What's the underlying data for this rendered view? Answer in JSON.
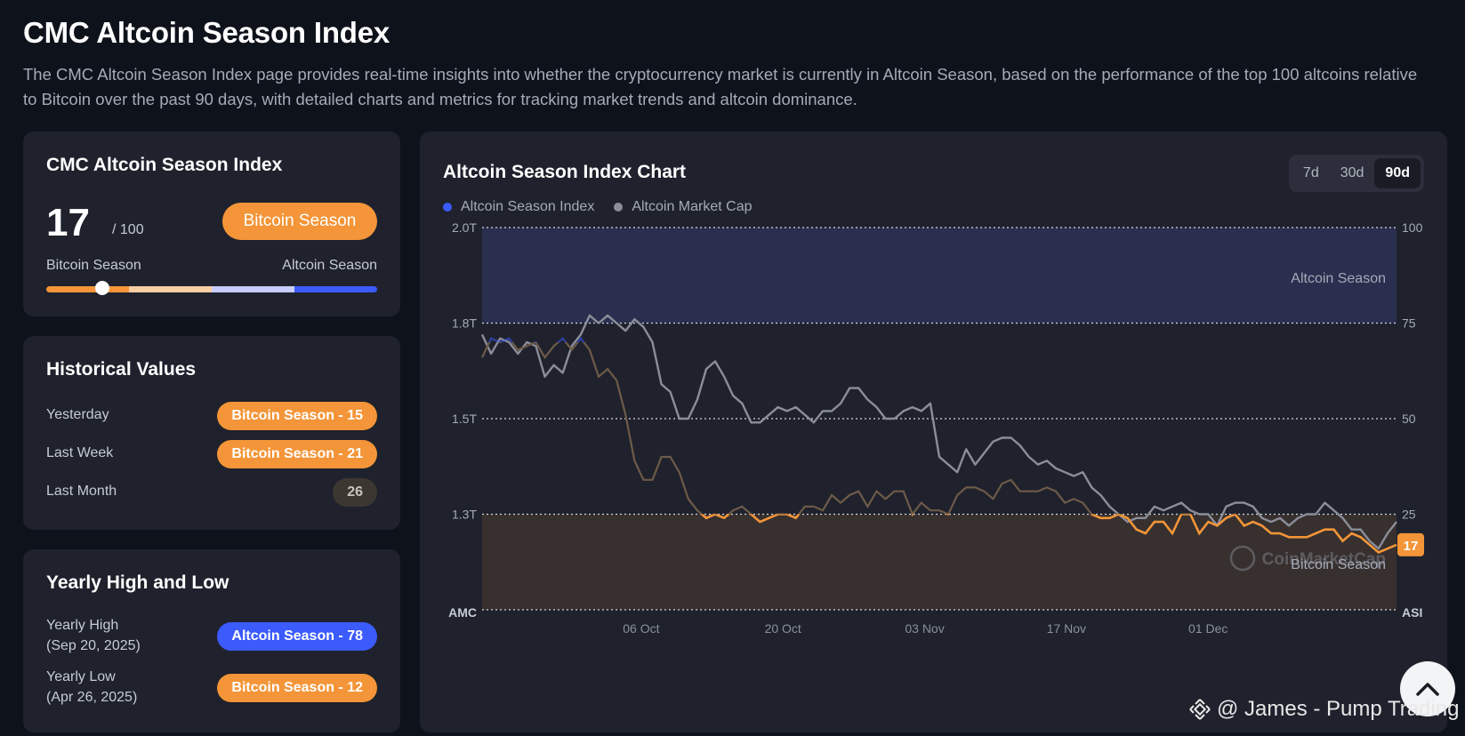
{
  "page": {
    "title": "CMC Altcoin Season Index",
    "description": "The CMC Altcoin Season Index page provides real-time insights into whether the cryptocurrency market is currently in Altcoin Season, based on the performance of the top 100 altcoins relative to Bitcoin over the past 90 days, with detailed charts and metrics for tracking market trends and altcoin dominance."
  },
  "index_card": {
    "title": "CMC Altcoin Season Index",
    "value": "17",
    "max": "/ 100",
    "season_label": "Bitcoin Season",
    "gauge_left": "Bitcoin Season",
    "gauge_right": "Altcoin Season",
    "gauge_level": 0.17
  },
  "historical": {
    "title": "Historical Values",
    "rows": [
      {
        "label": "Yesterday",
        "value": "Bitcoin Season - 15",
        "tone": "orange"
      },
      {
        "label": "Last Week",
        "value": "Bitcoin Season - 21",
        "tone": "orange"
      },
      {
        "label": "Last Month",
        "value": "26",
        "tone": "neutral"
      }
    ]
  },
  "yearly": {
    "title": "Yearly High and Low",
    "high_label": "Yearly High",
    "high_date": "(Sep 20, 2025)",
    "high_value": "Altcoin Season - 78",
    "low_label": "Yearly Low",
    "low_date": "(Apr 26, 2025)",
    "low_value": "Bitcoin Season - 12"
  },
  "chart_card": {
    "title": "Altcoin Season Index Chart",
    "range_tabs": [
      "7d",
      "30d",
      "90d"
    ],
    "active_range": "90d",
    "colors": {
      "index_blue": "#3b5bfd",
      "index_orange": "#f39538",
      "market_cap": "#8b8e99",
      "altcoin_zone": "#2a2f4f",
      "bitcoin_zone": "#37302f"
    }
  },
  "chart_data": {
    "type": "line",
    "title": "Altcoin Season Index Chart",
    "legend": {
      "placement": "top-left",
      "entries": [
        "Altcoin Season Index",
        "Altcoin Market Cap"
      ]
    },
    "x_ticks": [
      "06 Oct",
      "20 Oct",
      "03 Nov",
      "17 Nov",
      "01 Dec"
    ],
    "left_axis": {
      "label": "AMC",
      "ticks": [
        "2.0T",
        "1.8T",
        "1.5T",
        "1.3T"
      ]
    },
    "right_axis": {
      "label": "ASI",
      "ticks": [
        "100",
        "75",
        "50",
        "25"
      ],
      "range": [
        0,
        100
      ]
    },
    "zones": [
      {
        "label": "Altcoin Season",
        "from": 75,
        "to": 100
      },
      {
        "label": "Bitcoin Season",
        "from": 0,
        "to": 25
      }
    ],
    "current_value": "17",
    "series": [
      {
        "name": "Altcoin Season Index",
        "values": [
          66,
          71,
          70,
          71,
          68,
          69,
          70,
          66,
          69,
          71,
          68,
          71,
          68,
          61,
          63,
          60,
          51,
          39,
          34,
          34,
          40,
          40,
          36,
          29,
          26,
          24,
          25,
          24,
          26,
          27,
          25,
          23,
          24,
          25,
          25,
          24,
          27,
          27,
          26,
          30,
          28,
          30,
          31,
          27,
          31,
          29,
          31,
          31,
          25,
          28,
          26,
          26,
          25,
          30,
          32,
          32,
          31,
          29,
          33,
          34,
          31,
          31,
          31,
          32,
          31,
          28,
          29,
          28,
          25,
          24,
          24,
          25,
          24,
          21,
          20,
          23,
          23,
          20,
          25,
          25,
          20,
          23,
          22,
          24,
          25,
          22,
          23,
          22,
          20,
          20,
          19,
          19,
          19,
          20,
          21,
          21,
          18,
          20,
          19,
          17,
          15,
          16,
          17
        ]
      },
      {
        "name": "Altcoin Market Cap",
        "values": [
          72,
          67,
          71,
          70,
          67,
          70,
          69,
          61,
          64,
          62,
          69,
          72,
          77,
          75,
          77,
          75,
          73,
          76,
          74,
          70,
          59,
          57,
          50,
          50,
          55,
          63,
          65,
          61,
          56,
          54,
          49,
          49,
          51,
          53,
          52,
          53,
          51,
          49,
          52,
          52,
          54,
          58,
          58,
          55,
          53,
          50,
          50,
          52,
          53,
          52,
          54,
          40,
          38,
          36,
          42,
          38,
          41,
          44,
          45,
          45,
          43,
          40,
          38,
          39,
          37,
          36,
          35,
          36,
          32,
          30,
          27,
          25,
          23,
          24,
          24,
          27,
          26,
          27,
          28,
          26,
          25,
          25,
          22,
          27,
          28,
          28,
          27,
          24,
          23,
          24,
          22,
          24,
          25,
          25,
          28,
          26,
          24,
          21,
          21,
          18,
          16,
          20,
          23
        ]
      }
    ]
  },
  "watermark": {
    "text": "@ James - Pump Trading"
  }
}
